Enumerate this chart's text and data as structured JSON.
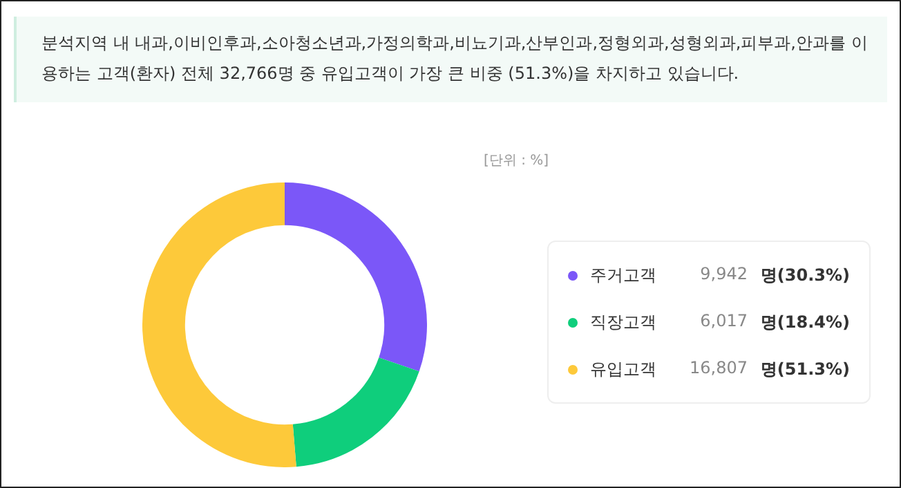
{
  "chart_data": {
    "type": "donut",
    "title": "분석지역 내 내과,이비인후과,소아청소년과,가정의학과,비뇨기과,산부인과,정형외과,성형외과,피부과,안과를 이용하는 고객(환자) 전체 32,766명 중 유입고객이 가장 큰 비중 (51.3%)을 차지하고 있습니다.",
    "categories": [
      "주거고객",
      "직장고객",
      "유입고객"
    ],
    "values": [
      30.3,
      18.4,
      51.3
    ],
    "value_labels": [
      "9,942 명(30.3%)",
      "6,017 명(18.4%)",
      "16,807 명(51.3%)"
    ],
    "colors": [
      "#7b57f8",
      "#0fce7c",
      "#fdc93a"
    ],
    "annotations": [
      "[단위 : %]"
    ],
    "legend": "right"
  }
}
